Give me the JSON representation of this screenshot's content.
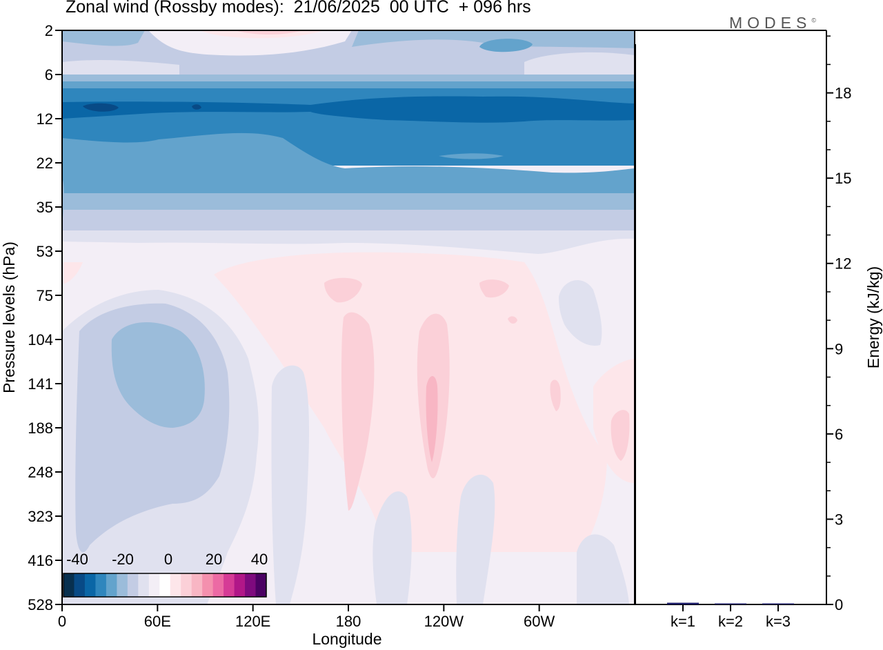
{
  "header": {
    "title": "Zonal wind (Rossby modes):  21/06/2025  00 UTC  + 096 hrs",
    "brand": "MODES"
  },
  "chart_data": [
    {
      "type": "heatmap",
      "xlabel": "Longitude",
      "ylabel": "Pressure levels (hPa)",
      "x_tick_labels": [
        "0",
        "60E",
        "120E",
        "180",
        "120W",
        "60W"
      ],
      "y_tick_labels": [
        "2",
        "6",
        "12",
        "22",
        "35",
        "53",
        "75",
        "104",
        "141",
        "188",
        "248",
        "323",
        "416",
        "528"
      ],
      "y_scale": "log (inverted, pressure)",
      "colorbar": {
        "labels": [
          "-40",
          "-20",
          "0",
          "20",
          "40"
        ],
        "colors": [
          "#08304f",
          "#084a86",
          "#0a66a6",
          "#2f86bd",
          "#63a3cc",
          "#9bbcda",
          "#c3cce4",
          "#e0e1ef",
          "#f3eef6",
          "#ffffff",
          "#fde6ea",
          "#fbd0d8",
          "#f8b6c4",
          "#f490ae",
          "#ec6aa4",
          "#d63b96",
          "#b11788",
          "#7e0a7e",
          "#4b0163"
        ]
      },
      "field_bands": [
        {
          "levels": "2-6 hPa",
          "value_range": [
            -20,
            5
          ]
        },
        {
          "levels": "6-12 hPa",
          "value_range": [
            -30,
            -15
          ]
        },
        {
          "levels": "12-22 hPa",
          "value_range": [
            -35,
            -25
          ]
        },
        {
          "levels": "22-35 hPa",
          "value_range": [
            -25,
            -15
          ]
        },
        {
          "levels": "35-53 hPa",
          "value_range": [
            -15,
            -5
          ]
        },
        {
          "levels": "53-528 hPa",
          "value_range": [
            -20,
            15
          ]
        }
      ]
    },
    {
      "type": "bar",
      "categories": [
        "k=1",
        "k=2",
        "k=3"
      ],
      "values": [
        0.06,
        0.02,
        0.01
      ],
      "ylabel": "Energy (kJ/kg)",
      "y_tick_labels": [
        "0",
        "3",
        "6",
        "9",
        "12",
        "15",
        "18"
      ],
      "ylim": [
        0,
        20.2
      ],
      "bar_color": "#1a1a66"
    }
  ]
}
